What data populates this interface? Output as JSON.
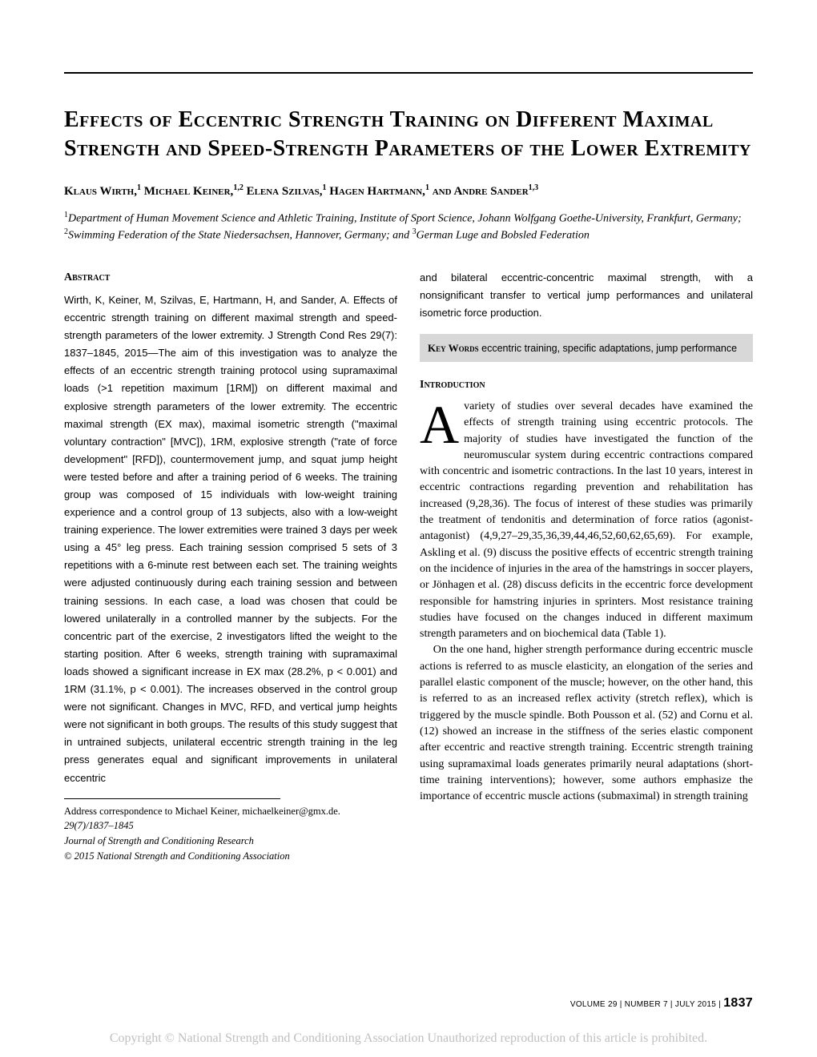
{
  "title": "Effects of Eccentric Strength Training on Different Maximal Strength and Speed-Strength Parameters of the Lower Extremity",
  "authors_html": "Klaus Wirth,<sup>1</sup> Michael Keiner,<sup>1,2</sup> Elena Szilvas,<sup>1</sup> Hagen Hartmann,<sup>1</sup> and Andre Sander<sup>1,3</sup>",
  "affiliations_html": "<sup>1</sup>Department of Human Movement Science and Athletic Training, Institute of Sport Science, Johann Wolfgang Goethe-University, Frankfurt, Germany; <sup>2</sup>Swimming Federation of the State Niedersachsen, Hannover, Germany; and <sup>3</sup>German Luge and Bobsled Federation",
  "abstract_head": "Abstract",
  "abstract_body": "Wirth, K, Keiner, M, Szilvas, E, Hartmann, H, and Sander, A. Effects of eccentric strength training on different maximal strength and speed-strength parameters of the lower extremity. J Strength Cond Res 29(7): 1837–1845, 2015—The aim of this investigation was to analyze the effects of an eccentric strength training protocol using supramaximal loads (>1 repetition maximum [1RM]) on different maximal and explosive strength parameters of the lower extremity. The eccentric maximal strength (EX max), maximal isometric strength (\"maximal voluntary contraction\" [MVC]), 1RM, explosive strength (\"rate of force development\" [RFD]), countermovement jump, and squat jump height were tested before and after a training period of 6 weeks. The training group was composed of 15 individuals with low-weight training experience and a control group of 13 subjects, also with a low-weight training experience. The lower extremities were trained 3 days per week using a 45° leg press. Each training session comprised 5 sets of 3 repetitions with a 6-minute rest between each set. The training weights were adjusted continuously during each training session and between training sessions. In each case, a load was chosen that could be lowered unilaterally in a controlled manner by the subjects. For the concentric part of the exercise, 2 investigators lifted the weight to the starting position. After 6 weeks, strength training with supramaximal loads showed a significant increase in EX max (28.2%, p < 0.001) and 1RM (31.1%, p < 0.001). The increases observed in the control group were not significant. Changes in MVC, RFD, and vertical jump heights were not significant in both groups. The results of this study suggest that in untrained subjects, unilateral eccentric strength training in the leg press generates equal and significant improvements in unilateral eccentric",
  "right_top": "and bilateral eccentric-concentric maximal strength, with a nonsignificant transfer to vertical jump performances and unilateral isometric force production.",
  "kw_label": "Key Words",
  "kw_text": " eccentric training, specific adaptations, jump performance",
  "intro_head": "Introduction",
  "intro_p1_html": "<span class=\"dropcap\">A</span>variety of studies over several decades have examined the effects of strength training using eccentric protocols. The majority of studies have investigated the function of the neuromuscular system during eccentric contractions compared with concentric and isometric contractions. In the last 10 years, interest in eccentric contractions regarding prevention and rehabilitation has increased (9,28,36). The focus of interest of these studies was primarily the treatment of tendonitis and determination of force ratios (agonist-antagonist) (4,9,27–29,35,36,39,44,46,52,60,62,65,69). For example, Askling et al. (9) discuss the positive effects of eccentric strength training on the incidence of injuries in the area of the hamstrings in soccer players, or Jönhagen et al. (28) discuss deficits in the eccentric force development responsible for hamstring injuries in sprinters. Most resistance training studies have focused on the changes induced in different maximum strength parameters and on biochemical data (Table 1).",
  "intro_p2": "On the one hand, higher strength performance during eccentric muscle actions is referred to as muscle elasticity, an elongation of the series and parallel elastic component of the muscle; however, on the other hand, this is referred to as an increased reflex activity (stretch reflex), which is triggered by the muscle spindle. Both Pousson et al. (52) and Cornu et al. (12) showed an increase in the stiffness of the series elastic component after eccentric and reactive strength training. Eccentric strength training using supramaximal loads generates primarily neural adaptations (short-time training interventions); however, some authors emphasize the importance of eccentric muscle actions (submaximal) in strength training",
  "corr_line1": "Address correspondence to Michael Keiner, michaelkeiner@gmx.de.",
  "corr_line2": "29(7)/1837–1845",
  "corr_line3": "Journal of Strength and Conditioning Research",
  "corr_line4": "© 2015 National Strength and Conditioning Association",
  "footer_vol": "VOLUME 29 | NUMBER 7 | JULY 2015 | ",
  "footer_page": "1837",
  "copyright": "Copyright © National Strength and Conditioning Association Unauthorized reproduction of this article is prohibited."
}
